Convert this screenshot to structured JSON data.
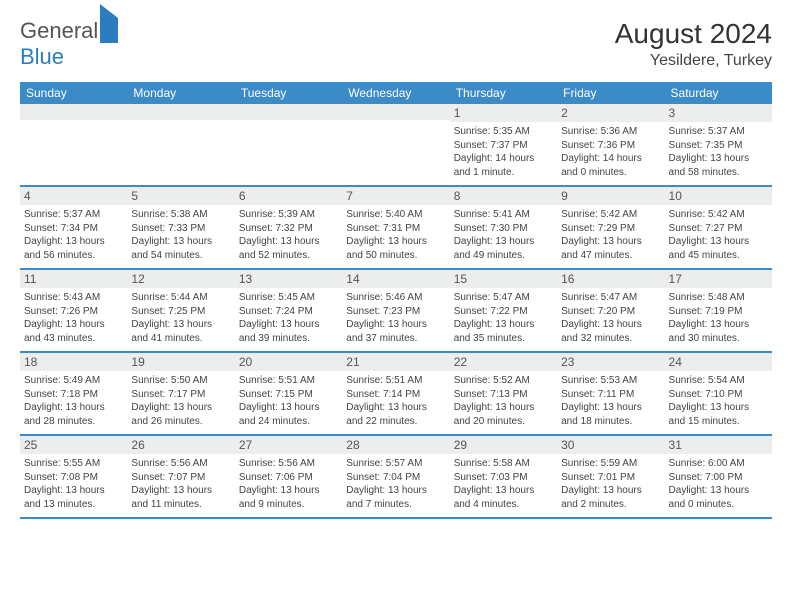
{
  "logo_general": "General",
  "logo_blue": "Blue",
  "month_title": "August 2024",
  "location": "Yesildere, Turkey",
  "day_headers": [
    "Sunday",
    "Monday",
    "Tuesday",
    "Wednesday",
    "Thursday",
    "Friday",
    "Saturday"
  ],
  "colors": {
    "header_bg": "#3b8bc9",
    "daynum_bg": "#eceded",
    "accent": "#2e7cc0"
  },
  "weeks": [
    [
      {
        "n": "",
        "sr": "",
        "ss": "",
        "dl": ""
      },
      {
        "n": "",
        "sr": "",
        "ss": "",
        "dl": ""
      },
      {
        "n": "",
        "sr": "",
        "ss": "",
        "dl": ""
      },
      {
        "n": "",
        "sr": "",
        "ss": "",
        "dl": ""
      },
      {
        "n": "1",
        "sr": "Sunrise: 5:35 AM",
        "ss": "Sunset: 7:37 PM",
        "dl": "Daylight: 14 hours and 1 minute."
      },
      {
        "n": "2",
        "sr": "Sunrise: 5:36 AM",
        "ss": "Sunset: 7:36 PM",
        "dl": "Daylight: 14 hours and 0 minutes."
      },
      {
        "n": "3",
        "sr": "Sunrise: 5:37 AM",
        "ss": "Sunset: 7:35 PM",
        "dl": "Daylight: 13 hours and 58 minutes."
      }
    ],
    [
      {
        "n": "4",
        "sr": "Sunrise: 5:37 AM",
        "ss": "Sunset: 7:34 PM",
        "dl": "Daylight: 13 hours and 56 minutes."
      },
      {
        "n": "5",
        "sr": "Sunrise: 5:38 AM",
        "ss": "Sunset: 7:33 PM",
        "dl": "Daylight: 13 hours and 54 minutes."
      },
      {
        "n": "6",
        "sr": "Sunrise: 5:39 AM",
        "ss": "Sunset: 7:32 PM",
        "dl": "Daylight: 13 hours and 52 minutes."
      },
      {
        "n": "7",
        "sr": "Sunrise: 5:40 AM",
        "ss": "Sunset: 7:31 PM",
        "dl": "Daylight: 13 hours and 50 minutes."
      },
      {
        "n": "8",
        "sr": "Sunrise: 5:41 AM",
        "ss": "Sunset: 7:30 PM",
        "dl": "Daylight: 13 hours and 49 minutes."
      },
      {
        "n": "9",
        "sr": "Sunrise: 5:42 AM",
        "ss": "Sunset: 7:29 PM",
        "dl": "Daylight: 13 hours and 47 minutes."
      },
      {
        "n": "10",
        "sr": "Sunrise: 5:42 AM",
        "ss": "Sunset: 7:27 PM",
        "dl": "Daylight: 13 hours and 45 minutes."
      }
    ],
    [
      {
        "n": "11",
        "sr": "Sunrise: 5:43 AM",
        "ss": "Sunset: 7:26 PM",
        "dl": "Daylight: 13 hours and 43 minutes."
      },
      {
        "n": "12",
        "sr": "Sunrise: 5:44 AM",
        "ss": "Sunset: 7:25 PM",
        "dl": "Daylight: 13 hours and 41 minutes."
      },
      {
        "n": "13",
        "sr": "Sunrise: 5:45 AM",
        "ss": "Sunset: 7:24 PM",
        "dl": "Daylight: 13 hours and 39 minutes."
      },
      {
        "n": "14",
        "sr": "Sunrise: 5:46 AM",
        "ss": "Sunset: 7:23 PM",
        "dl": "Daylight: 13 hours and 37 minutes."
      },
      {
        "n": "15",
        "sr": "Sunrise: 5:47 AM",
        "ss": "Sunset: 7:22 PM",
        "dl": "Daylight: 13 hours and 35 minutes."
      },
      {
        "n": "16",
        "sr": "Sunrise: 5:47 AM",
        "ss": "Sunset: 7:20 PM",
        "dl": "Daylight: 13 hours and 32 minutes."
      },
      {
        "n": "17",
        "sr": "Sunrise: 5:48 AM",
        "ss": "Sunset: 7:19 PM",
        "dl": "Daylight: 13 hours and 30 minutes."
      }
    ],
    [
      {
        "n": "18",
        "sr": "Sunrise: 5:49 AM",
        "ss": "Sunset: 7:18 PM",
        "dl": "Daylight: 13 hours and 28 minutes."
      },
      {
        "n": "19",
        "sr": "Sunrise: 5:50 AM",
        "ss": "Sunset: 7:17 PM",
        "dl": "Daylight: 13 hours and 26 minutes."
      },
      {
        "n": "20",
        "sr": "Sunrise: 5:51 AM",
        "ss": "Sunset: 7:15 PM",
        "dl": "Daylight: 13 hours and 24 minutes."
      },
      {
        "n": "21",
        "sr": "Sunrise: 5:51 AM",
        "ss": "Sunset: 7:14 PM",
        "dl": "Daylight: 13 hours and 22 minutes."
      },
      {
        "n": "22",
        "sr": "Sunrise: 5:52 AM",
        "ss": "Sunset: 7:13 PM",
        "dl": "Daylight: 13 hours and 20 minutes."
      },
      {
        "n": "23",
        "sr": "Sunrise: 5:53 AM",
        "ss": "Sunset: 7:11 PM",
        "dl": "Daylight: 13 hours and 18 minutes."
      },
      {
        "n": "24",
        "sr": "Sunrise: 5:54 AM",
        "ss": "Sunset: 7:10 PM",
        "dl": "Daylight: 13 hours and 15 minutes."
      }
    ],
    [
      {
        "n": "25",
        "sr": "Sunrise: 5:55 AM",
        "ss": "Sunset: 7:08 PM",
        "dl": "Daylight: 13 hours and 13 minutes."
      },
      {
        "n": "26",
        "sr": "Sunrise: 5:56 AM",
        "ss": "Sunset: 7:07 PM",
        "dl": "Daylight: 13 hours and 11 minutes."
      },
      {
        "n": "27",
        "sr": "Sunrise: 5:56 AM",
        "ss": "Sunset: 7:06 PM",
        "dl": "Daylight: 13 hours and 9 minutes."
      },
      {
        "n": "28",
        "sr": "Sunrise: 5:57 AM",
        "ss": "Sunset: 7:04 PM",
        "dl": "Daylight: 13 hours and 7 minutes."
      },
      {
        "n": "29",
        "sr": "Sunrise: 5:58 AM",
        "ss": "Sunset: 7:03 PM",
        "dl": "Daylight: 13 hours and 4 minutes."
      },
      {
        "n": "30",
        "sr": "Sunrise: 5:59 AM",
        "ss": "Sunset: 7:01 PM",
        "dl": "Daylight: 13 hours and 2 minutes."
      },
      {
        "n": "31",
        "sr": "Sunrise: 6:00 AM",
        "ss": "Sunset: 7:00 PM",
        "dl": "Daylight: 13 hours and 0 minutes."
      }
    ]
  ]
}
